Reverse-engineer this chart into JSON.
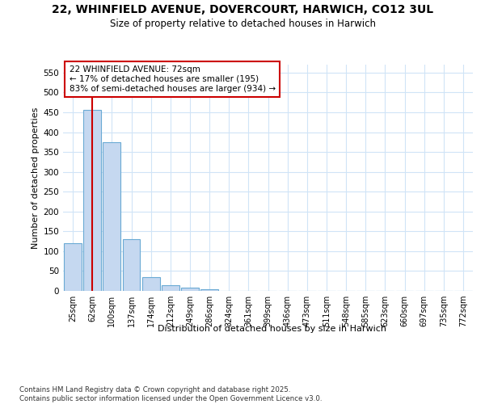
{
  "title1": "22, WHINFIELD AVENUE, DOVERCOURT, HARWICH, CO12 3UL",
  "title2": "Size of property relative to detached houses in Harwich",
  "xlabel": "Distribution of detached houses by size in Harwich",
  "ylabel": "Number of detached properties",
  "categories": [
    "25sqm",
    "62sqm",
    "100sqm",
    "137sqm",
    "174sqm",
    "212sqm",
    "249sqm",
    "286sqm",
    "324sqm",
    "361sqm",
    "399sqm",
    "436sqm",
    "473sqm",
    "511sqm",
    "548sqm",
    "585sqm",
    "623sqm",
    "660sqm",
    "697sqm",
    "735sqm",
    "772sqm"
  ],
  "values": [
    120,
    455,
    375,
    130,
    35,
    15,
    8,
    5,
    1,
    1,
    1,
    0,
    0,
    0,
    0,
    0,
    0,
    0,
    0,
    0,
    1
  ],
  "bar_color": "#c5d8f0",
  "bar_edge_color": "#6aaad4",
  "red_line_color": "#cc0000",
  "red_line_x": 1.0,
  "annotation_line1": "22 WHINFIELD AVENUE: 72sqm",
  "annotation_line2": "← 17% of detached houses are smaller (195)",
  "annotation_line3": "83% of semi-detached houses are larger (934) →",
  "annotation_box_facecolor": "#ffffff",
  "annotation_box_edgecolor": "#cc0000",
  "ylim": [
    0,
    570
  ],
  "yticks": [
    0,
    50,
    100,
    150,
    200,
    250,
    300,
    350,
    400,
    450,
    500,
    550
  ],
  "footer1": "Contains HM Land Registry data © Crown copyright and database right 2025.",
  "footer2": "Contains public sector information licensed under the Open Government Licence v3.0.",
  "bg_color": "#ffffff",
  "grid_color": "#d0e4f7",
  "bar_width": 0.9
}
